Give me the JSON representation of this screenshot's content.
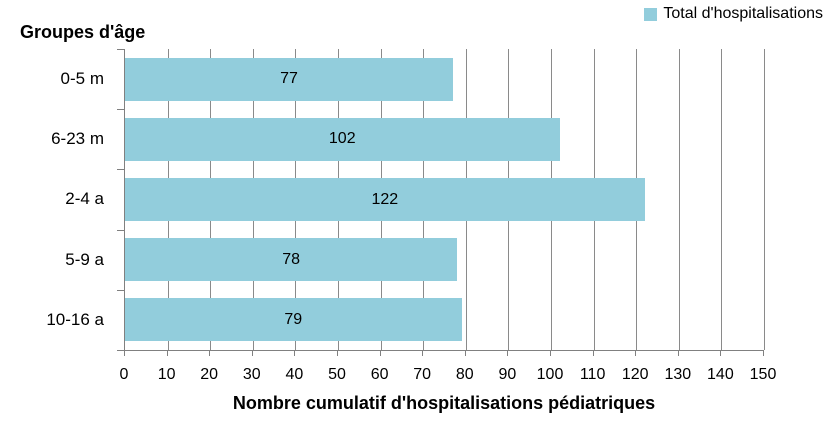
{
  "chart": {
    "y_axis_title": "Groupes d'âge",
    "x_axis_title": "Nombre cumulatif d'hospitalisations pédiatriques",
    "legend": {
      "label": "Total d'hospitalisations",
      "swatch_color": "#92CDDC"
    }
  },
  "chart_data": {
    "type": "bar",
    "orientation": "horizontal",
    "title": "",
    "ylabel": "Groupes d'âge",
    "xlabel": "Nombre cumulatif d'hospitalisations pédiatriques",
    "categories": [
      "0-5 m",
      "6-23 m",
      "2-4 a",
      "5-9 a",
      "10-16 a"
    ],
    "series": [
      {
        "name": "Total d'hospitalisations",
        "values": [
          77,
          102,
          122,
          78,
          79
        ]
      }
    ],
    "value_labels_shown": true,
    "xlim": [
      0,
      150
    ],
    "xticks": [
      0,
      10,
      20,
      30,
      40,
      50,
      60,
      70,
      80,
      90,
      100,
      110,
      120,
      130,
      140,
      150
    ],
    "grid": true,
    "legend_position": "top-right",
    "bar_color": "#92CDDC",
    "gridline_color": "#8a8a8a",
    "axis_color": "#808080",
    "text_color": "#000000",
    "background_color": "#ffffff"
  }
}
